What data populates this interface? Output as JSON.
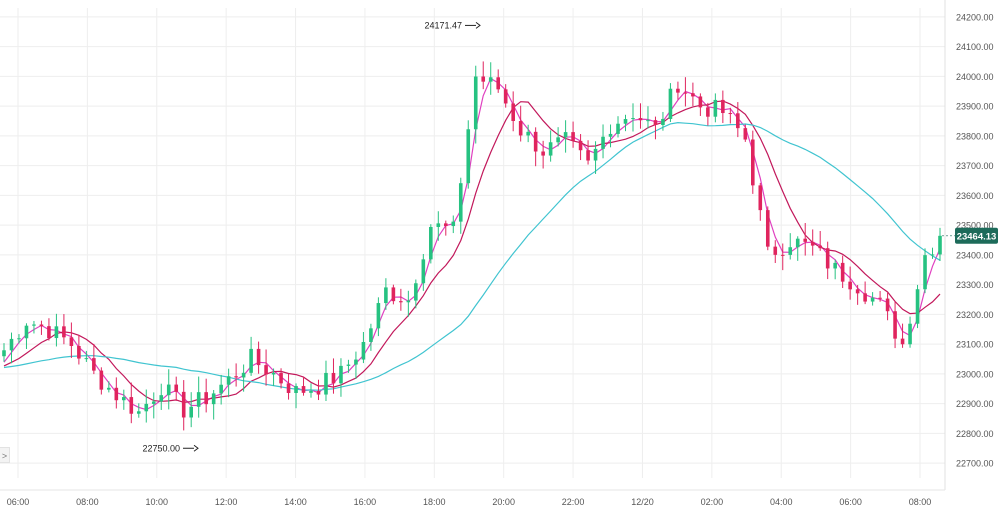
{
  "colors": {
    "up": "#26c281",
    "down": "#e0245e",
    "ma_short": "#e040c0",
    "ma_mid": "#c2185b",
    "ma_long": "#40c4d0",
    "grid": "#eeeeee",
    "axis_text": "#555555",
    "price_tag": "#1d6b5a"
  },
  "chart_data": {
    "type": "candlestick",
    "instrument_pair": "",
    "x_ticks": [
      "06:00",
      "08:00",
      "10:00",
      "12:00",
      "14:00",
      "16:00",
      "18:00",
      "20:00",
      "22:00",
      "12/20",
      "02:00",
      "04:00",
      "06:00",
      "08:00"
    ],
    "y_ticks": [
      "24200.00",
      "24100.00",
      "24000.00",
      "23900.00",
      "23800.00",
      "23700.00",
      "23600.00",
      "23500.00",
      "23400.00",
      "23300.00",
      "23200.00",
      "23100.00",
      "23000.00",
      "22900.00",
      "22800.00",
      "22700.00"
    ],
    "ylim": [
      22650,
      24230
    ],
    "grid": true,
    "current_price": "23464.13",
    "annotations": [
      {
        "label": "24171.47",
        "value": 24171.47,
        "kind": "high"
      },
      {
        "label": "22750.00",
        "value": 22750.0,
        "kind": "low"
      }
    ],
    "close_path": [
      [
        0,
        23080
      ],
      [
        3,
        23180
      ],
      [
        6,
        23150
      ],
      [
        9,
        23100
      ],
      [
        12,
        23000
      ],
      [
        15,
        22930
      ],
      [
        18,
        22870
      ],
      [
        21,
        22960
      ],
      [
        24,
        22880
      ],
      [
        27,
        22920
      ],
      [
        30,
        22980
      ],
      [
        33,
        23050
      ],
      [
        36,
        23000
      ],
      [
        39,
        22940
      ],
      [
        42,
        22960
      ],
      [
        45,
        23000
      ],
      [
        48,
        23100
      ],
      [
        51,
        23280
      ],
      [
        54,
        23250
      ],
      [
        57,
        23500
      ],
      [
        60,
        23480
      ],
      [
        63,
        24000
      ],
      [
        66,
        23960
      ],
      [
        69,
        23820
      ],
      [
        72,
        23750
      ],
      [
        75,
        23780
      ],
      [
        78,
        23700
      ],
      [
        81,
        23840
      ],
      [
        84,
        23880
      ],
      [
        87,
        23820
      ],
      [
        90,
        23980
      ],
      [
        93,
        23900
      ],
      [
        96,
        23880
      ],
      [
        99,
        23790
      ],
      [
        102,
        23400
      ],
      [
        105,
        23450
      ],
      [
        108,
        23420
      ],
      [
        111,
        23350
      ],
      [
        114,
        23300
      ],
      [
        117,
        23230
      ],
      [
        120,
        23100
      ],
      [
        123,
        23400
      ],
      [
        125,
        23464.13
      ]
    ],
    "series": [
      {
        "name": "",
        "role": "ma_short"
      },
      {
        "name": "",
        "role": "ma_mid"
      },
      {
        "name": "",
        "role": "ma_long"
      }
    ]
  }
}
